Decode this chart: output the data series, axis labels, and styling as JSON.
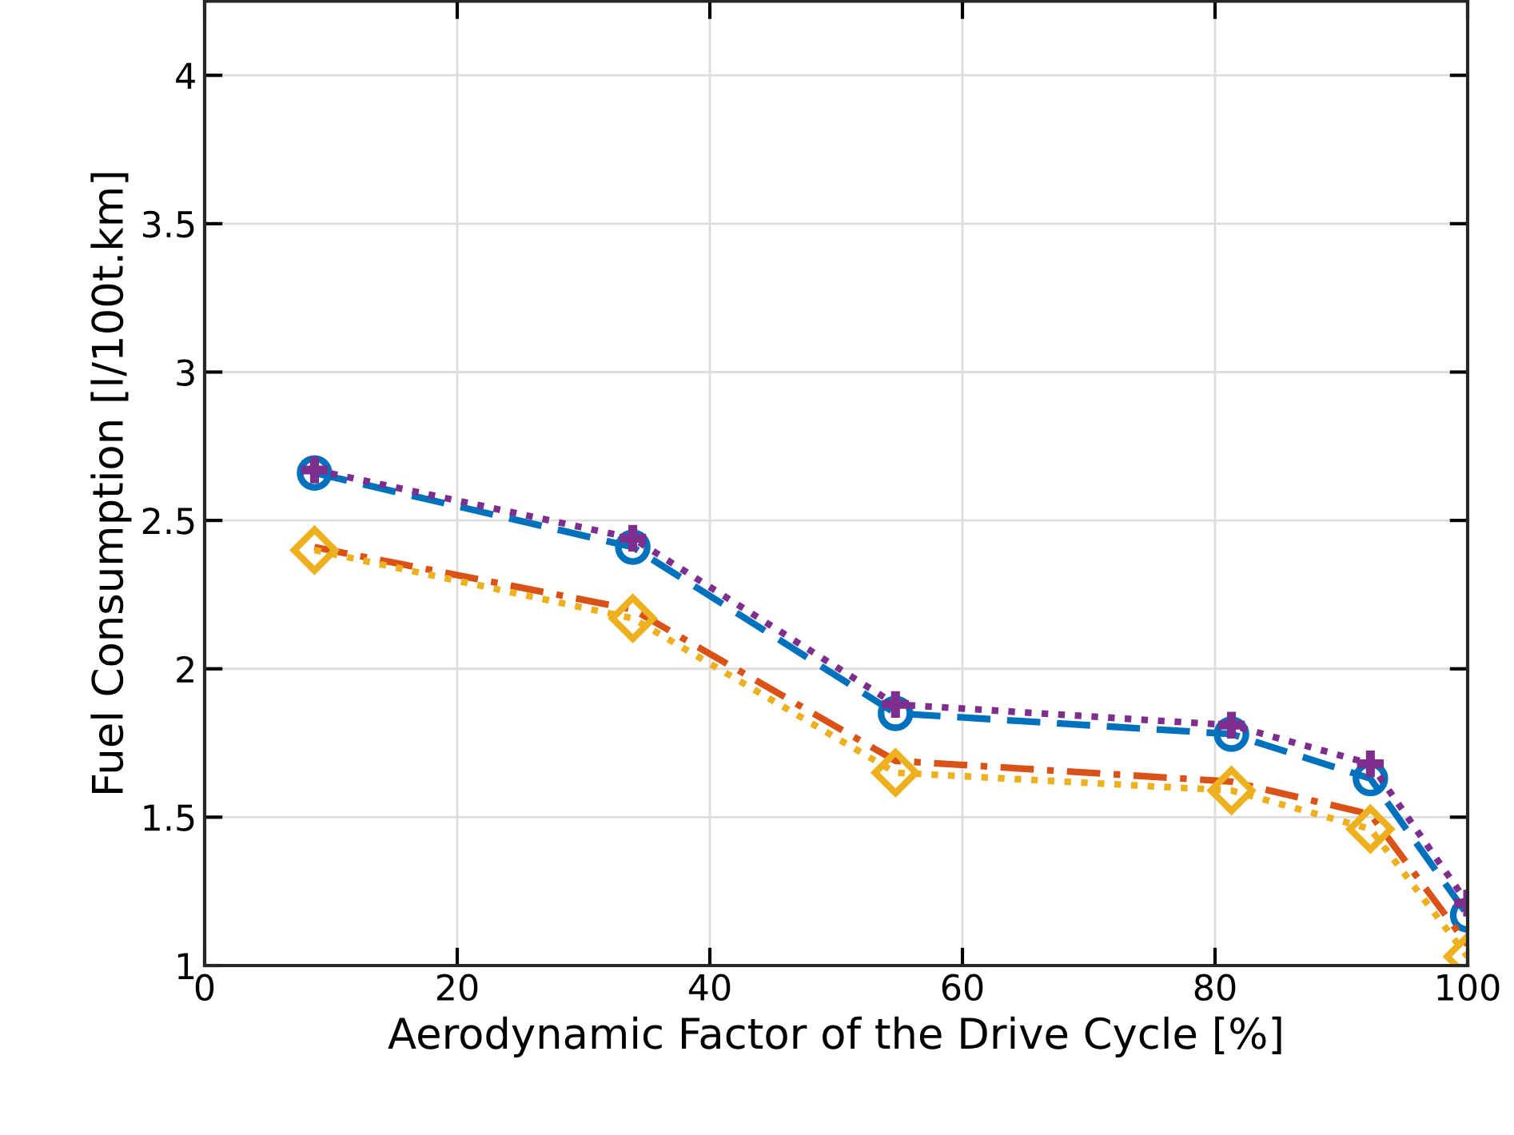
{
  "chart_data": {
    "type": "line",
    "xlabel": "Aerodynamic Factor of the Drive Cycle [%]",
    "ylabel": "Fuel Consumption [l/100t.km]",
    "x": [
      8.7,
      33.9,
      54.7,
      81.3,
      92.3,
      100
    ],
    "series": [
      {
        "color": "#0072bd",
        "marker": "circle",
        "line_style": "dashed",
        "values": [
          2.66,
          2.41,
          1.85,
          1.78,
          1.63,
          1.17
        ]
      },
      {
        "color": "#d95319",
        "marker": "none",
        "line_style": "dashdot",
        "values": [
          2.41,
          2.2,
          1.69,
          1.62,
          1.51,
          1.07
        ]
      },
      {
        "color": "#edb120",
        "marker": "diamond",
        "line_style": "dotted",
        "values": [
          2.4,
          2.17,
          1.65,
          1.59,
          1.46,
          1.03
        ]
      },
      {
        "color": "#7e2f8e",
        "marker": "cross",
        "line_style": "dotted",
        "values": [
          2.67,
          2.44,
          1.88,
          1.81,
          1.68,
          1.21
        ]
      }
    ],
    "xlim": [
      0,
      100
    ],
    "xticks": [
      0,
      20,
      40,
      60,
      80,
      100
    ],
    "ylim": [
      1,
      4.25
    ],
    "yticks": [
      1,
      1.5,
      2,
      2.5,
      3,
      3.5,
      4
    ],
    "grid": true,
    "legend": false
  }
}
